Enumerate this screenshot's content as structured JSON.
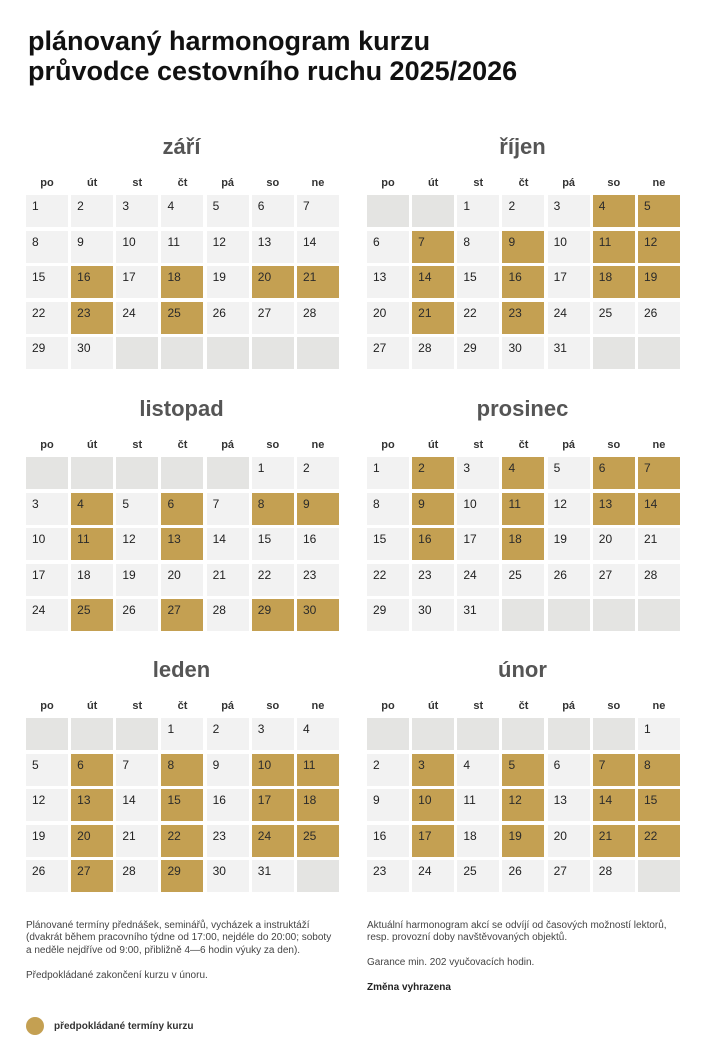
{
  "title": {
    "line1": "plánovaný harmonogram kurzu",
    "line2": "průvodce cestovního ruchu 2025/2026"
  },
  "weekdays": [
    "po",
    "út",
    "st",
    "čt",
    "pá",
    "so",
    "ne"
  ],
  "colors": {
    "highlight": "#c4a052",
    "cell": "#f2f2f2",
    "blank": "#e4e4e2"
  },
  "months": [
    {
      "name": "září",
      "offset": 0,
      "days": 30,
      "highlighted": [
        16,
        18,
        20,
        21,
        23,
        25
      ]
    },
    {
      "name": "říjen",
      "offset": 2,
      "days": 31,
      "highlighted": [
        4,
        5,
        7,
        9,
        11,
        12,
        14,
        16,
        18,
        19,
        21,
        23
      ]
    },
    {
      "name": "listopad",
      "offset": 5,
      "days": 30,
      "highlighted": [
        4,
        6,
        8,
        9,
        11,
        13,
        25,
        27,
        29,
        30
      ]
    },
    {
      "name": "prosinec",
      "offset": 0,
      "days": 31,
      "highlighted": [
        2,
        4,
        6,
        7,
        9,
        11,
        13,
        14,
        16,
        18
      ]
    },
    {
      "name": "leden",
      "offset": 3,
      "days": 31,
      "highlighted": [
        6,
        8,
        10,
        11,
        13,
        15,
        17,
        18,
        20,
        22,
        24,
        25,
        27,
        29
      ]
    },
    {
      "name": "únor",
      "offset": 6,
      "days": 28,
      "highlighted": [
        3,
        5,
        7,
        8,
        10,
        12,
        14,
        15,
        17,
        19,
        21,
        22
      ]
    }
  ],
  "footer": {
    "left_p1": "Plánované termíny přednášek, seminářů, vycházek a instruktáží (dvakrát během pracovního týdne od 17:00, nejdéle do 20:00; soboty a neděle nejdříve od 9:00, přibližně 4—6 hodin výuky za den).",
    "left_p2": "Předpokládané zakončení kurzu v únoru.",
    "right_p1": "Aktuální harmonogram akcí se odvíjí od časových možností lektorů, resp. provozní doby navštěvovaných objektů.",
    "right_p2": "Garance min. 202 vyučovacích hodin.",
    "right_p3": "Změna vyhrazena"
  },
  "legend": {
    "label": "předpokládané termíny kurzu"
  }
}
